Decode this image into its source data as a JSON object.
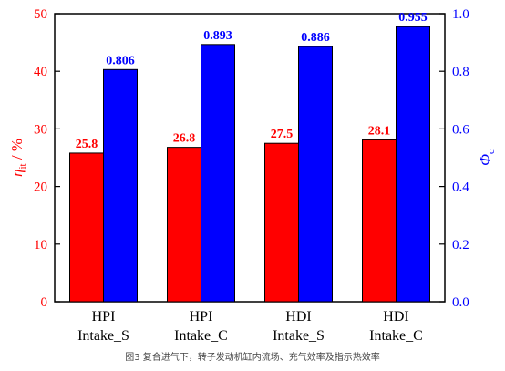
{
  "chart_data": {
    "type": "bar",
    "categories": [
      [
        "HPI",
        "Intake_S"
      ],
      [
        "HPI",
        "Intake_C"
      ],
      [
        "HDI",
        "Intake_S"
      ],
      [
        "HDI",
        "Intake_C"
      ]
    ],
    "series": [
      {
        "axis": "left",
        "color": "#ff0000",
        "label_color": "#ff0000",
        "values": [
          25.8,
          26.8,
          27.5,
          28.1
        ],
        "labels": [
          "25.8",
          "26.8",
          "27.5",
          "28.1"
        ]
      },
      {
        "axis": "right",
        "color": "#0000ff",
        "label_color": "#0000ff",
        "values": [
          0.806,
          0.893,
          0.886,
          0.955
        ],
        "labels": [
          "0.806",
          "0.893",
          "0.886",
          "0.955"
        ]
      }
    ],
    "y_left": {
      "label_symbol": "η",
      "label_sub": "it",
      "label_suffix": " / %",
      "range": [
        0,
        50
      ],
      "ticks": [
        "0",
        "10",
        "20",
        "30",
        "40",
        "50"
      ],
      "color": "#ff0000"
    },
    "y_right": {
      "label_symbol": "Φ",
      "label_sub": "c",
      "range": [
        0,
        1.0
      ],
      "ticks": [
        "0.0",
        "0.2",
        "0.4",
        "0.6",
        "0.8",
        "1.0"
      ],
      "color": "#0000ff"
    },
    "grid": false
  },
  "caption": "图3 复合进气下，转子发动机缸内流场、充气效率及指示热效率"
}
